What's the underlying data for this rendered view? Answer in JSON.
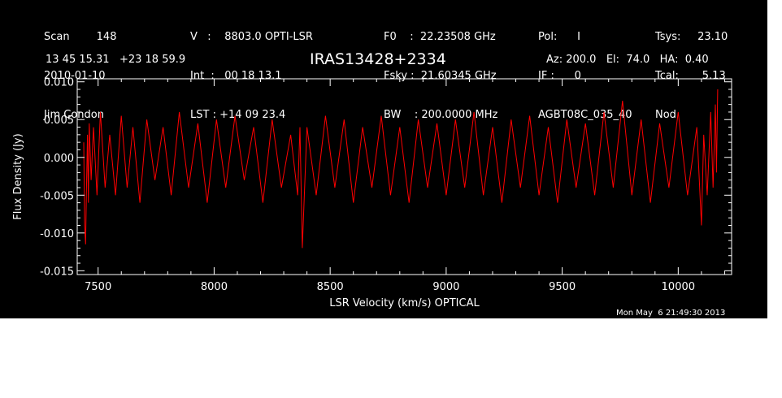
{
  "header": {
    "col1": [
      "Scan        148",
      "2010-01-10",
      "Jim Condon"
    ],
    "col2": [
      "V   :    8803.0 OPTI-LSR",
      "Int  :   00 18 13.1",
      "LST : +14 09 23.4"
    ],
    "col3": [
      "F0    :  22.23508 GHz",
      "Fsky :  21.60345 GHz",
      "BW    : 200.0000 MHz"
    ],
    "col4": [
      "Pol:      I",
      "IF :      0",
      "AGBT08C_035_40"
    ],
    "col5": [
      "Tsys:     23.10",
      "Tcal:       5.13",
      "Nod"
    ],
    "coords": "13 45 15.31   +23 18 59.9",
    "azelha": "Az: 200.0   El:  74.0   HA:  0.40",
    "timestamp": "Mon May  6 21:49:30 2013"
  },
  "colors": {
    "background": "#000000",
    "foreground": "#ffffff",
    "trace": "#ff0000"
  },
  "chart_data": {
    "type": "line",
    "title": "IRAS13428+2334",
    "xlabel": "LSR Velocity (km/s) OPTICAL",
    "ylabel": "Flux Density (Jy)",
    "xlim": [
      7410,
      10230
    ],
    "ylim": [
      -0.0155,
      0.0104
    ],
    "xticks": [
      7500,
      8000,
      8500,
      9000,
      9500,
      10000
    ],
    "xtick_labels": [
      "7500",
      "8000",
      "8500",
      "9000",
      "9500",
      "10000"
    ],
    "yticks": [
      0.01,
      0.005,
      0.0,
      -0.005,
      -0.01,
      -0.015
    ],
    "ytick_labels": [
      "0.010",
      "0.005",
      "0.000",
      "-0.005",
      "-0.010",
      "-0.015"
    ],
    "series": [
      {
        "x": [
          7438,
          7442,
          7446,
          7450,
          7454,
          7458,
          7462,
          7470,
          7480,
          7495,
          7510,
          7530,
          7550,
          7575,
          7600,
          7625,
          7650,
          7680,
          7710,
          7745,
          7780,
          7815,
          7850,
          7890,
          7930,
          7970,
          8010,
          8050,
          8090,
          8130,
          8170,
          8210,
          8250,
          8290,
          8330,
          8360,
          8370,
          8380,
          8400,
          8440,
          8480,
          8520,
          8560,
          8600,
          8640,
          8680,
          8720,
          8760,
          8800,
          8840,
          8880,
          8920,
          8960,
          9000,
          9040,
          9080,
          9120,
          9160,
          9200,
          9240,
          9280,
          9320,
          9360,
          9400,
          9440,
          9480,
          9520,
          9560,
          9600,
          9640,
          9680,
          9720,
          9760,
          9800,
          9840,
          9880,
          9920,
          9960,
          10000,
          10040,
          10080,
          10100,
          10110,
          10125,
          10140,
          10150,
          10160,
          10165,
          10170
        ],
        "y": [
          0.002,
          -0.009,
          -0.0115,
          -0.004,
          0.003,
          -0.006,
          0.0045,
          -0.003,
          0.004,
          -0.005,
          0.006,
          -0.004,
          0.003,
          -0.005,
          0.0055,
          -0.004,
          0.004,
          -0.006,
          0.005,
          -0.003,
          0.004,
          -0.005,
          0.006,
          -0.004,
          0.0045,
          -0.006,
          0.005,
          -0.004,
          0.0055,
          -0.003,
          0.004,
          -0.006,
          0.005,
          -0.004,
          0.003,
          -0.005,
          0.004,
          -0.012,
          0.004,
          -0.005,
          0.0055,
          -0.004,
          0.005,
          -0.006,
          0.004,
          -0.004,
          0.0055,
          -0.005,
          0.004,
          -0.006,
          0.005,
          -0.004,
          0.0045,
          -0.005,
          0.005,
          -0.004,
          0.006,
          -0.005,
          0.004,
          -0.006,
          0.005,
          -0.004,
          0.0055,
          -0.005,
          0.004,
          -0.006,
          0.005,
          -0.004,
          0.0045,
          -0.005,
          0.006,
          -0.004,
          0.0075,
          -0.005,
          0.005,
          -0.006,
          0.0045,
          -0.004,
          0.006,
          -0.005,
          0.004,
          -0.009,
          0.003,
          -0.005,
          0.006,
          -0.004,
          0.007,
          -0.002,
          0.009
        ]
      }
    ],
    "grid": false,
    "legend": "none"
  }
}
